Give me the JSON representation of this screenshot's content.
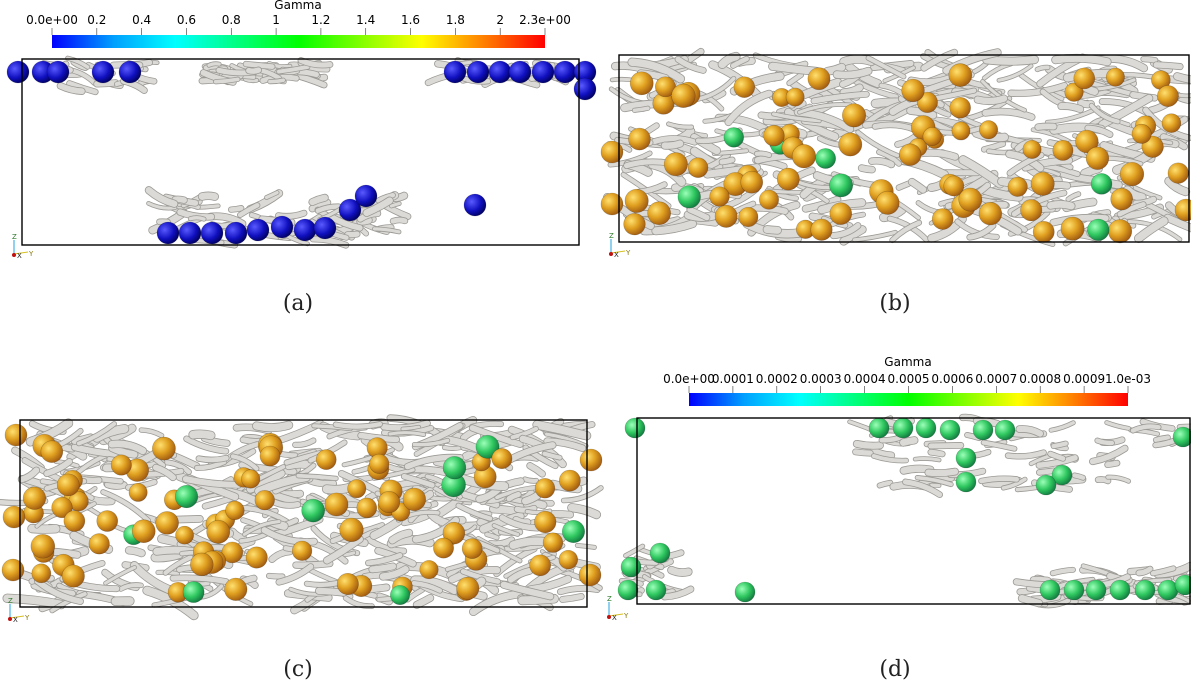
{
  "colorbar_top": {
    "title": "Gamma",
    "ticks": [
      "0.0e+00",
      "0.2",
      "0.4",
      "0.6",
      "0.8",
      "1",
      "1.2",
      "1.4",
      "1.6",
      "1.8",
      "2",
      "2.3e+00"
    ],
    "range": [
      0.0,
      2.3
    ]
  },
  "colorbar_bottom": {
    "title": "Gamma",
    "ticks": [
      "0.0e+00",
      "0.0001",
      "0.0002",
      "0.0003",
      "0.0004",
      "0.0005",
      "0.0006",
      "0.0007",
      "0.0008",
      "0.0009",
      "1.0e-03"
    ],
    "range": [
      0.0,
      0.001
    ]
  },
  "colormap": [
    "#0000ff",
    "#00a0ff",
    "#00ffff",
    "#00ff80",
    "#00ff00",
    "#80ff00",
    "#ffff00",
    "#ff8000",
    "#ff0000"
  ],
  "panels": [
    {
      "caption": "(a)",
      "sphere_color": "#1a1acc"
    },
    {
      "caption": "(b)",
      "sphere_color": "#d08a18"
    },
    {
      "caption": "(c)",
      "sphere_color": "#d08a18"
    },
    {
      "caption": "(d)",
      "sphere_color": "#3cc86a"
    }
  ],
  "axes_triad": {
    "z": "Z",
    "x": "X",
    "y": "Y"
  },
  "vortex_color": "#dcdad6"
}
